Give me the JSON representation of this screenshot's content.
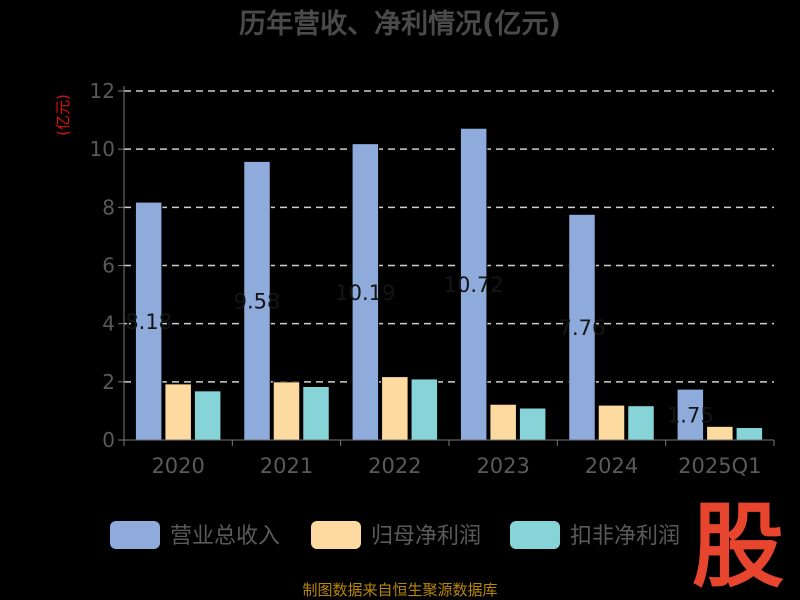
{
  "chart_data": {
    "type": "bar",
    "title": "历年营收、净利情况(亿元)",
    "ylabel": "(亿元)",
    "categories": [
      "2020",
      "2021",
      "2022",
      "2023",
      "2024",
      "2025Q1"
    ],
    "ylim": [
      0,
      12
    ],
    "yticks": [
      0,
      2,
      4,
      6,
      8,
      10,
      12
    ],
    "grid": true,
    "legend_position": "bottom",
    "series": [
      {
        "name": "营业总收入",
        "color": "#8eabdb",
        "values": [
          8.18,
          9.58,
          10.19,
          10.72,
          7.76,
          1.75
        ]
      },
      {
        "name": "归母净利润",
        "color": "#fddba0",
        "values": [
          1.93,
          2.0,
          2.18,
          1.23,
          1.2,
          0.47
        ]
      },
      {
        "name": "扣非净利润",
        "color": "#86d3d8",
        "values": [
          1.69,
          1.84,
          2.1,
          1.1,
          1.18,
          0.43
        ]
      }
    ],
    "data_labels": [
      "8.18",
      "9.58",
      "10.19",
      "10.72",
      "7.76",
      "1.75"
    ]
  },
  "footer": {
    "source": "制图数据来自恒生聚源数据库",
    "logo_text": "股"
  }
}
